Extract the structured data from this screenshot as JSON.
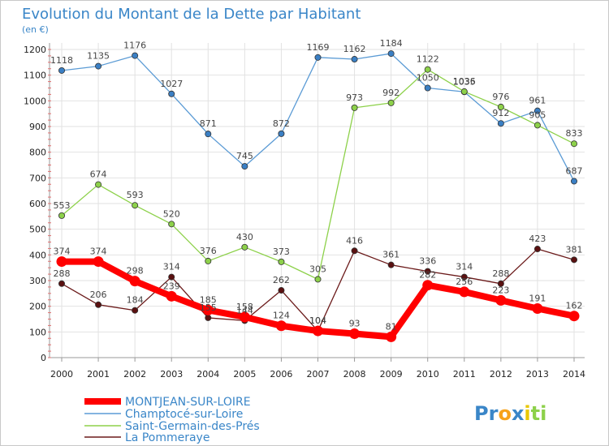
{
  "chart_data": {
    "type": "line",
    "title": "Evolution du Montant de la Dette par Habitant",
    "subtitle": "(en €)",
    "xlabel": "",
    "ylabel": "",
    "ylim": [
      0,
      1200
    ],
    "yticks": [
      0,
      100,
      200,
      300,
      400,
      500,
      600,
      700,
      800,
      900,
      1000,
      1100,
      1200
    ],
    "categories": [
      "2000",
      "2001",
      "2002",
      "2003",
      "2004",
      "2005",
      "2006",
      "2007",
      "2008",
      "2009",
      "2010",
      "2011",
      "2012",
      "2013",
      "2014"
    ],
    "grid": true,
    "legend_position": "bottom-left",
    "series": [
      {
        "name": "MONTJEAN-SUR-LOIRE",
        "color": "#ff0000",
        "values": [
          374,
          374,
          298,
          239,
          185,
          158,
          124,
          104,
          93,
          81,
          282,
          256,
          223,
          191,
          162
        ]
      },
      {
        "name": "Champtocé-sur-Loire",
        "color": "#5b9bd5",
        "values": [
          1118,
          1135,
          1176,
          1027,
          871,
          745,
          872,
          1169,
          1162,
          1184,
          1050,
          1035,
          912,
          961,
          687
        ]
      },
      {
        "name": "Saint-Germain-des-Prés",
        "color": "#8dd14a",
        "values": [
          553,
          674,
          593,
          520,
          376,
          430,
          373,
          305,
          973,
          992,
          1122,
          1036,
          976,
          905,
          833
        ]
      },
      {
        "name": "La Pommeraye",
        "color": "#6b1a1a",
        "values": [
          288,
          206,
          184,
          314,
          155,
          144,
          262,
          104,
          416,
          361,
          336,
          314,
          288,
          423,
          381
        ]
      }
    ]
  },
  "logo": {
    "text": "Proxiti",
    "letters": [
      "P",
      "r",
      "o",
      "x",
      "i",
      "t",
      "i"
    ],
    "colors": [
      "#3a86c8",
      "#3a86c8",
      "#f7a21b",
      "#3a86c8",
      "#e8c700",
      "#8dd14a",
      "#8dd14a"
    ]
  }
}
